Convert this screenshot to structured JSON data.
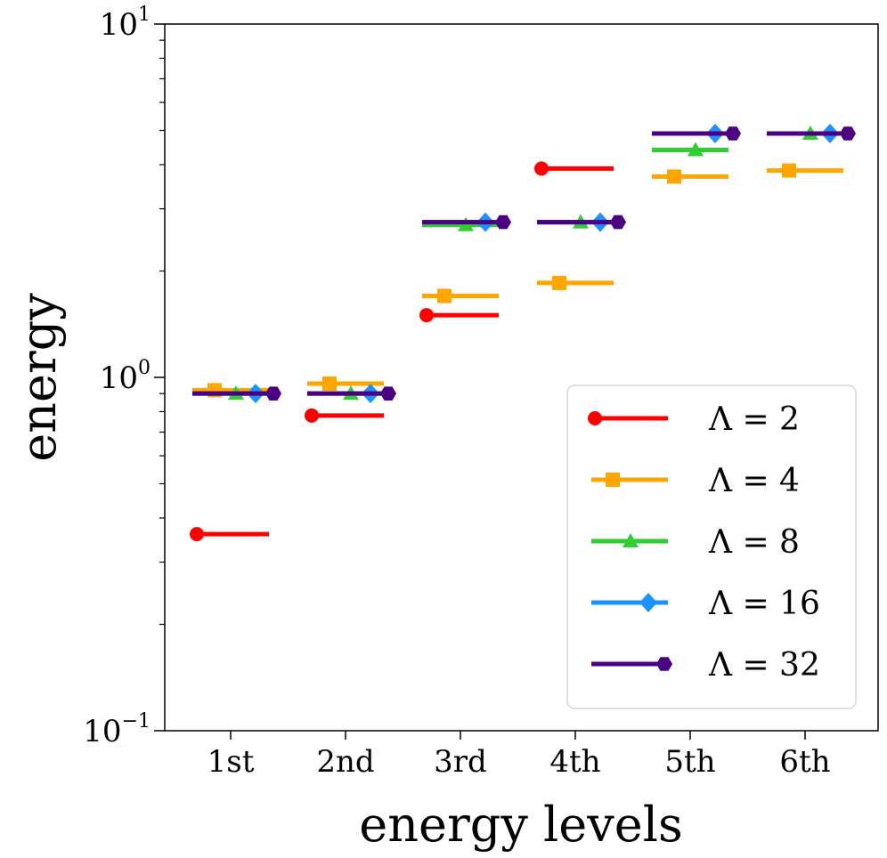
{
  "chart_data": {
    "type": "line",
    "title": "",
    "xlabel": "energy levels",
    "ylabel": "energy",
    "yscale": "log",
    "ylim": [
      0.1,
      10
    ],
    "y_ticks": [
      {
        "value": 0.1,
        "base": "10",
        "exp": "−1"
      },
      {
        "value": 1,
        "base": "10",
        "exp": "0"
      },
      {
        "value": 10,
        "base": "10",
        "exp": "1"
      }
    ],
    "categories": [
      "1st",
      "2nd",
      "3rd",
      "4th",
      "5th",
      "6th"
    ],
    "grid": false,
    "legend_position": "lower-right",
    "series": [
      {
        "name": "Λ = 2",
        "color": "#ff0000",
        "marker": "circle",
        "values": [
          0.36,
          0.78,
          1.5,
          3.9,
          null,
          null
        ]
      },
      {
        "name": "Λ = 4",
        "color": "#ffa500",
        "marker": "square",
        "values": [
          0.92,
          0.96,
          1.7,
          1.85,
          3.7,
          3.85
        ]
      },
      {
        "name": "Λ = 8",
        "color": "#32cd32",
        "marker": "triangle",
        "values": [
          0.9,
          0.9,
          2.7,
          2.75,
          4.4,
          4.9
        ]
      },
      {
        "name": "Λ = 16",
        "color": "#1e90ff",
        "marker": "diamond",
        "values": [
          0.9,
          0.9,
          2.75,
          2.75,
          4.9,
          4.9
        ]
      },
      {
        "name": "Λ = 32",
        "color": "#4b0082",
        "marker": "hexagon",
        "values": [
          0.9,
          0.9,
          2.75,
          2.75,
          4.9,
          4.9
        ]
      }
    ]
  }
}
